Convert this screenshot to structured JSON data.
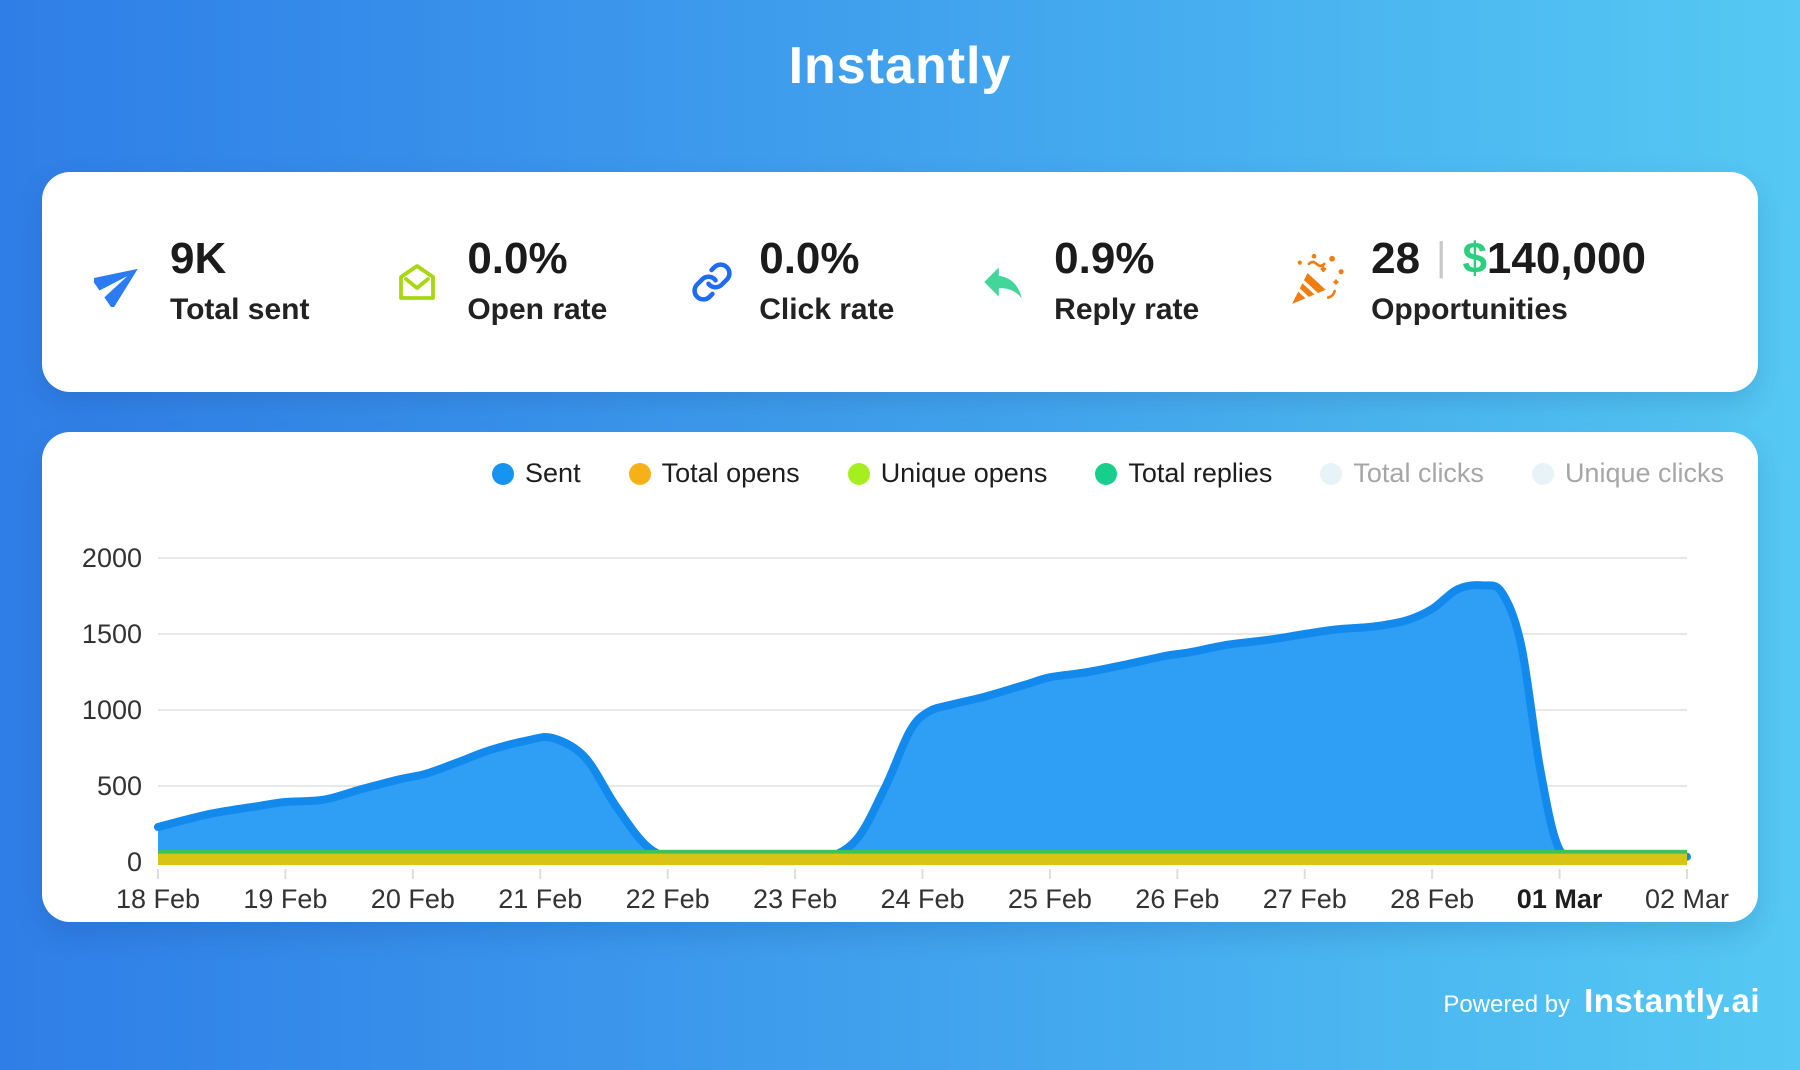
{
  "page": {
    "title": "Instantly"
  },
  "stats": {
    "items": [
      {
        "icon": "paper-plane-icon",
        "icon_color": "#2b7bf3",
        "value": "9K",
        "label": "Total sent"
      },
      {
        "icon": "open-envelope-icon",
        "icon_color": "#a6d711",
        "value": "0.0%",
        "label": "Open rate"
      },
      {
        "icon": "link-icon",
        "icon_color": "#1f6bf2",
        "value": "0.0%",
        "label": "Click rate"
      },
      {
        "icon": "reply-arrow-icon",
        "icon_color": "#42d69a",
        "value": "0.9%",
        "label": "Reply rate"
      }
    ],
    "opportunities": {
      "icon": "party-popper-icon",
      "icon_color": "#f07d12",
      "count": "28",
      "divider": "|",
      "currency": "$",
      "currency_color": "#2dce7d",
      "amount": "140,000",
      "label": "Opportunities"
    }
  },
  "chart": {
    "legend": [
      {
        "label": "Sent",
        "color": "#1793f0",
        "active": true
      },
      {
        "label": "Total opens",
        "color": "#f7b018",
        "active": true
      },
      {
        "label": "Unique opens",
        "color": "#a5ef1e",
        "active": true
      },
      {
        "label": "Total replies",
        "color": "#17cf8c",
        "active": true
      },
      {
        "label": "Total clicks",
        "color": "#e8f3f7",
        "active": false
      },
      {
        "label": "Unique clicks",
        "color": "#e8f3f7",
        "active": false
      }
    ]
  },
  "chart_data": {
    "type": "area",
    "title": "",
    "xlabel": "",
    "ylabel": "",
    "x_labels": [
      "18 Feb",
      "19 Feb",
      "20 Feb",
      "21 Feb",
      "22 Feb",
      "23 Feb",
      "24 Feb",
      "25 Feb",
      "26 Feb",
      "27 Feb",
      "28 Feb",
      "01 Mar",
      "02 Mar"
    ],
    "bold_x_label": "01 Mar",
    "ylim": [
      0,
      2000
    ],
    "yticks": [
      0,
      500,
      1000,
      1500,
      2000
    ],
    "grid": "horizontal",
    "legend_position": "top-right",
    "series": [
      {
        "name": "Sent",
        "type": "area",
        "fill": "#2e9ff4",
        "stroke": "#1289ed",
        "values_by_day": [
          230,
          395,
          565,
          815,
          15,
          10,
          990,
          1215,
          1380,
          1500,
          1665,
          80,
          35
        ],
        "peak_value": 1820,
        "peak_at": "just after 28 Feb",
        "curve": [
          [
            0,
            230
          ],
          [
            0.4,
            315
          ],
          [
            0.8,
            370
          ],
          [
            1,
            395
          ],
          [
            1.3,
            410
          ],
          [
            1.6,
            480
          ],
          [
            1.9,
            545
          ],
          [
            2.1,
            580
          ],
          [
            2.35,
            655
          ],
          [
            2.6,
            735
          ],
          [
            2.9,
            800
          ],
          [
            3.1,
            815
          ],
          [
            3.35,
            690
          ],
          [
            3.6,
            360
          ],
          [
            3.85,
            95
          ],
          [
            4.1,
            20
          ],
          [
            4.5,
            10
          ],
          [
            5.1,
            10
          ],
          [
            5.45,
            120
          ],
          [
            5.7,
            480
          ],
          [
            5.9,
            860
          ],
          [
            6.05,
            990
          ],
          [
            6.25,
            1040
          ],
          [
            6.5,
            1090
          ],
          [
            6.8,
            1165
          ],
          [
            7,
            1215
          ],
          [
            7.3,
            1250
          ],
          [
            7.6,
            1300
          ],
          [
            7.9,
            1355
          ],
          [
            8.1,
            1380
          ],
          [
            8.4,
            1430
          ],
          [
            8.7,
            1460
          ],
          [
            9,
            1500
          ],
          [
            9.25,
            1530
          ],
          [
            9.55,
            1550
          ],
          [
            9.8,
            1590
          ],
          [
            10,
            1665
          ],
          [
            10.2,
            1795
          ],
          [
            10.4,
            1820
          ],
          [
            10.55,
            1770
          ],
          [
            10.7,
            1420
          ],
          [
            10.85,
            600
          ],
          [
            11,
            80
          ],
          [
            11.2,
            42
          ],
          [
            11.5,
            35
          ],
          [
            12,
            35
          ]
        ]
      },
      {
        "name": "Total opens",
        "color": "#f7b018",
        "band_color": "#d9c415",
        "constant_value": 55
      },
      {
        "name": "Unique opens",
        "color": "#a5ef1e",
        "band_color": "#d9c415",
        "constant_value": 45
      },
      {
        "name": "Total replies",
        "color": "#17cf8c",
        "band_color": "#3cc257",
        "constant_value": 25
      },
      {
        "name": "Total clicks",
        "color": "#e8f3f7",
        "hidden": true
      },
      {
        "name": "Unique clicks",
        "color": "#e8f3f7",
        "hidden": true
      }
    ]
  },
  "footer": {
    "powered_by": "Powered by",
    "brand": "Instantly.ai"
  }
}
